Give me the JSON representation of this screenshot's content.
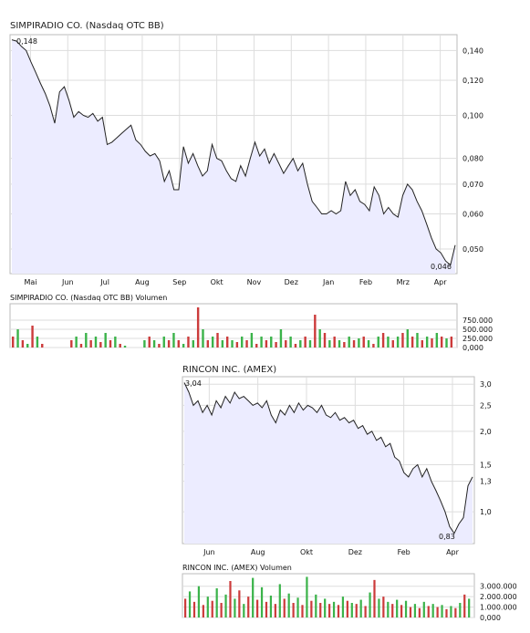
{
  "chart_data": [
    {
      "type": "line",
      "title": "SIMPIRADIO CO. (Nasdaq OTC BB)",
      "yscale": "log",
      "ylim": [
        0.044,
        0.152
      ],
      "yticks": [
        "0,140",
        "0,120",
        "0,100",
        "0,080",
        "0,070",
        "0,060",
        "0,050"
      ],
      "ytick_values": [
        0.14,
        0.12,
        0.1,
        0.08,
        0.07,
        0.06,
        0.05
      ],
      "xlabels": [
        "Mai",
        "Jun",
        "Jul",
        "Aug",
        "Sep",
        "Okt",
        "Nov",
        "Dez",
        "Jan",
        "Feb",
        "Mrz",
        "Apr"
      ],
      "high_label": "0,148",
      "low_label": "0,046",
      "series": [
        {
          "values": [
            0.148,
            0.147,
            0.143,
            0.14,
            0.132,
            0.125,
            0.118,
            0.112,
            0.105,
            0.096,
            0.113,
            0.116,
            0.108,
            0.099,
            0.102,
            0.1,
            0.099,
            0.101,
            0.097,
            0.099,
            0.086,
            0.087,
            0.089,
            0.091,
            0.093,
            0.095,
            0.088,
            0.086,
            0.083,
            0.081,
            0.082,
            0.079,
            0.071,
            0.075,
            0.068,
            0.068,
            0.085,
            0.078,
            0.082,
            0.077,
            0.073,
            0.075,
            0.086,
            0.08,
            0.079,
            0.075,
            0.072,
            0.071,
            0.077,
            0.073,
            0.08,
            0.087,
            0.081,
            0.084,
            0.078,
            0.082,
            0.078,
            0.074,
            0.077,
            0.08,
            0.075,
            0.078,
            0.07,
            0.064,
            0.062,
            0.06,
            0.06,
            0.061,
            0.06,
            0.061,
            0.071,
            0.066,
            0.068,
            0.064,
            0.063,
            0.061,
            0.069,
            0.066,
            0.06,
            0.062,
            0.06,
            0.059,
            0.066,
            0.07,
            0.068,
            0.064,
            0.061,
            0.057,
            0.053,
            0.05,
            0.049,
            0.047,
            0.046,
            0.051
          ]
        }
      ]
    },
    {
      "type": "bar",
      "title": "SIMPIRADIO CO. (Nasdaq OTC BB) Volumen",
      "yticks": [
        "750.000",
        "500.000",
        "250.000",
        "0,000"
      ],
      "ytick_values": [
        750000,
        500000,
        250000,
        0
      ],
      "ylim": [
        0,
        1200000
      ],
      "values": [
        300000,
        500000,
        200000,
        100000,
        600000,
        300000,
        100000,
        0,
        0,
        0,
        0,
        0,
        200000,
        300000,
        100000,
        400000,
        200000,
        300000,
        150000,
        400000,
        200000,
        300000,
        100000,
        50000,
        0,
        0,
        0,
        200000,
        300000,
        200000,
        100000,
        300000,
        200000,
        400000,
        200000,
        100000,
        300000,
        200000,
        1100000,
        500000,
        200000,
        300000,
        400000,
        200000,
        300000,
        200000,
        150000,
        300000,
        200000,
        400000,
        100000,
        300000,
        200000,
        300000,
        150000,
        500000,
        200000,
        300000,
        100000,
        200000,
        300000,
        200000,
        900000,
        500000,
        400000,
        200000,
        300000,
        200000,
        150000,
        300000,
        200000,
        250000,
        300000,
        200000,
        100000,
        300000,
        400000,
        300000,
        200000,
        300000,
        400000,
        500000,
        300000,
        400000,
        200000,
        300000,
        250000,
        400000,
        300000,
        250000,
        300000
      ]
    },
    {
      "type": "line",
      "title": "RINCON INC. (AMEX)",
      "yscale": "log",
      "ylim": [
        0.76,
        3.2
      ],
      "yticks": [
        "3,0",
        "2,5",
        "2,0",
        "1,5",
        "1,3",
        "1,0"
      ],
      "ytick_values": [
        3.0,
        2.5,
        2.0,
        1.5,
        1.3,
        1.0
      ],
      "xlabels": [
        "Jun",
        "Aug",
        "Okt",
        "Dez",
        "Feb",
        "Apr"
      ],
      "high_label": "3,04",
      "low_label": "0,83",
      "series": [
        {
          "values": [
            3.04,
            2.8,
            2.5,
            2.6,
            2.35,
            2.5,
            2.3,
            2.6,
            2.45,
            2.7,
            2.55,
            2.8,
            2.65,
            2.7,
            2.6,
            2.5,
            2.55,
            2.45,
            2.6,
            2.3,
            2.15,
            2.4,
            2.3,
            2.5,
            2.35,
            2.55,
            2.4,
            2.5,
            2.45,
            2.35,
            2.5,
            2.3,
            2.25,
            2.35,
            2.2,
            2.25,
            2.15,
            2.2,
            2.05,
            2.1,
            1.95,
            2.0,
            1.85,
            1.9,
            1.75,
            1.8,
            1.6,
            1.55,
            1.4,
            1.35,
            1.45,
            1.5,
            1.35,
            1.45,
            1.3,
            1.2,
            1.1,
            1.0,
            0.88,
            0.83,
            0.9,
            0.95,
            1.25,
            1.35
          ]
        }
      ]
    },
    {
      "type": "bar",
      "title": "RINCON INC. (AMEX) Volumen",
      "yticks": [
        "3.000.000",
        "2.000.000",
        "1.000.000",
        "0,000"
      ],
      "ytick_values": [
        3000000,
        2000000,
        1000000,
        0
      ],
      "ylim": [
        0,
        4200000
      ],
      "values": [
        1800000,
        2500000,
        1500000,
        3000000,
        1200000,
        2000000,
        1600000,
        2800000,
        1400000,
        2200000,
        3500000,
        1800000,
        2600000,
        1300000,
        2000000,
        3800000,
        1700000,
        2900000,
        1500000,
        2100000,
        1300000,
        3200000,
        1800000,
        2300000,
        1400000,
        1900000,
        1200000,
        3900000,
        1600000,
        2200000,
        1400000,
        1800000,
        1300000,
        1500000,
        1200000,
        2000000,
        1600000,
        1400000,
        1300000,
        1700000,
        1100000,
        2400000,
        3600000,
        1800000,
        2000000,
        1500000,
        1300000,
        1700000,
        1200000,
        1600000,
        1000000,
        1300000,
        900000,
        1500000,
        1100000,
        1300000,
        1000000,
        1200000,
        800000,
        1100000,
        900000,
        1400000,
        2200000,
        1800000
      ]
    }
  ]
}
